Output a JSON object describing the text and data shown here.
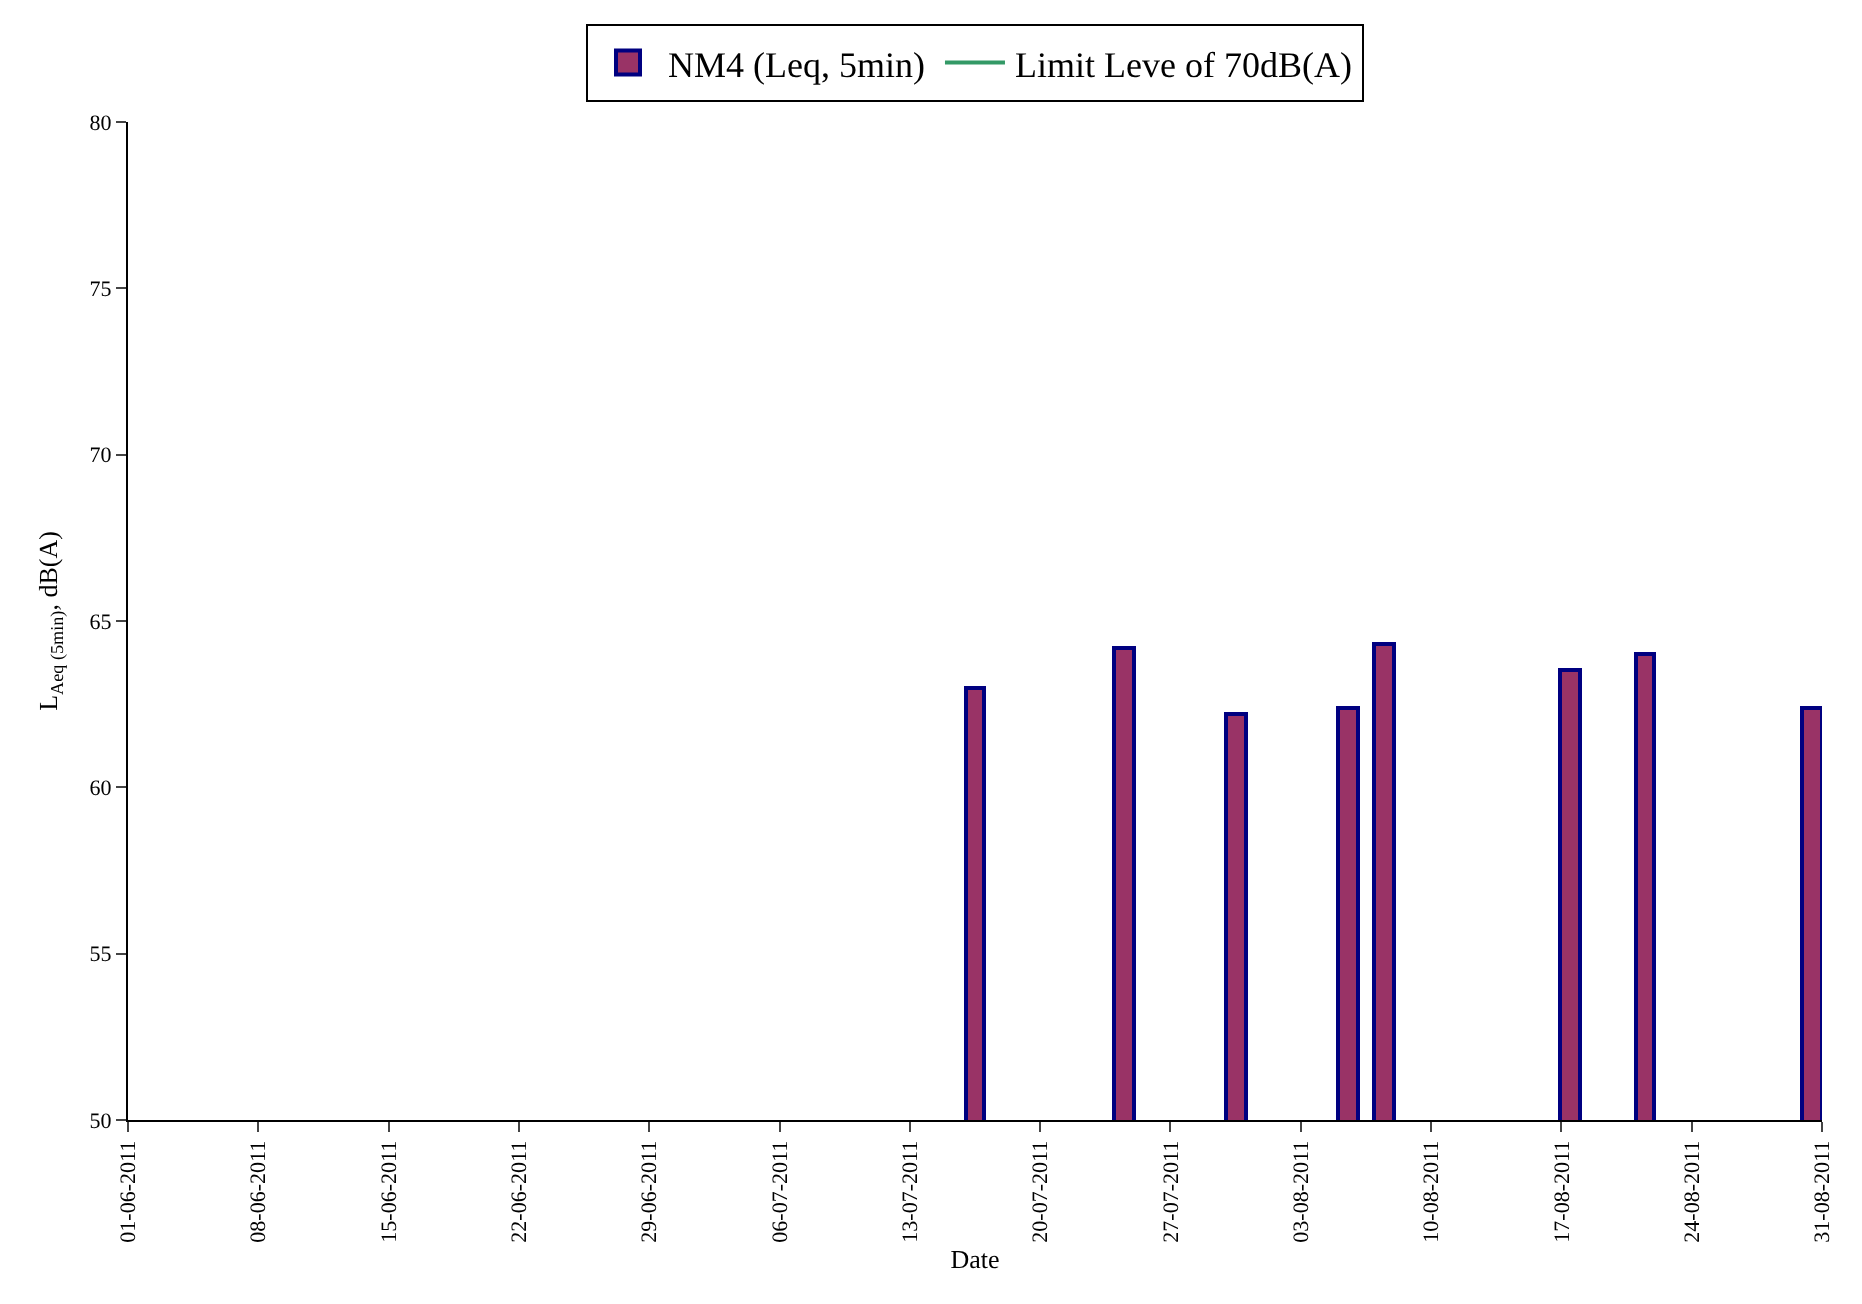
{
  "chart_data": {
    "type": "bar",
    "xlabel": "Date",
    "ylabel": "L$_{Aeq (5min)}$, dB(A)",
    "x": [
      "2011-07-16T12:00",
      "2011-07-24T12:00",
      "2011-07-30T12:00",
      "2011-08-05T12:00",
      "2011-08-07T12:00",
      "2011-08-17T12:00",
      "2011-08-21T12:00",
      "2011-08-30T12:00"
    ],
    "series": [
      {
        "name": "NM4 (Leq, 5min)",
        "color": "#993366",
        "values": [
          63.0,
          64.2,
          62.2,
          62.4,
          64.3,
          63.5,
          64.0,
          62.4
        ]
      },
      {
        "name": "Limit Leve of 70dB(A)",
        "type": "line",
        "color": "#339966",
        "values": [
          null,
          null,
          null,
          null,
          null,
          null,
          null,
          null
        ]
      }
    ],
    "xlim": [
      "2011-06-01",
      "2011-08-31"
    ],
    "xticks": [
      {
        "value": "2011-06-01",
        "label": "01-06-2011"
      },
      {
        "value": "2011-06-08",
        "label": "08-06-2011"
      },
      {
        "value": "2011-06-15",
        "label": "15-06-2011"
      },
      {
        "value": "2011-06-22",
        "label": "22-06-2011"
      },
      {
        "value": "2011-06-29",
        "label": "29-06-2011"
      },
      {
        "value": "2011-07-06",
        "label": "06-07-2011"
      },
      {
        "value": "2011-07-13",
        "label": "13-07-2011"
      },
      {
        "value": "2011-07-20",
        "label": "20-07-2011"
      },
      {
        "value": "2011-07-27",
        "label": "27-07-2011"
      },
      {
        "value": "2011-08-03",
        "label": "03-08-2011"
      },
      {
        "value": "2011-08-10",
        "label": "10-08-2011"
      },
      {
        "value": "2011-08-17",
        "label": "17-08-2011"
      },
      {
        "value": "2011-08-24",
        "label": "24-08-2011"
      },
      {
        "value": "2011-08-31",
        "label": "31-08-2011"
      }
    ],
    "ylim": [
      50,
      80
    ],
    "yticks": [
      50,
      55,
      60,
      65,
      70,
      75,
      80
    ],
    "grid": false,
    "legend": "top"
  }
}
